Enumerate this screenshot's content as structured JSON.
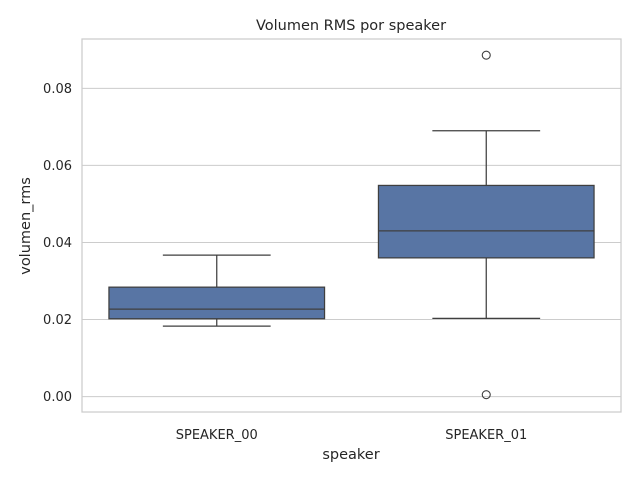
{
  "chart_data": {
    "type": "box",
    "title": "Volumen RMS por speaker",
    "xlabel": "speaker",
    "ylabel": "volumen_rms",
    "ylim": [
      -0.004,
      0.0928
    ],
    "yticks": [
      0.0,
      0.02,
      0.04,
      0.06,
      0.08
    ],
    "ytick_labels": [
      "0.00",
      "0.02",
      "0.04",
      "0.06",
      "0.08"
    ],
    "grid": "horizontal",
    "color": "#5875a4",
    "categories": [
      "SPEAKER_00",
      "SPEAKER_01"
    ],
    "boxes": [
      {
        "category": "SPEAKER_00",
        "whisker_low": 0.0183,
        "q1": 0.0202,
        "median": 0.0227,
        "q3": 0.0284,
        "whisker_high": 0.0367,
        "outliers": []
      },
      {
        "category": "SPEAKER_01",
        "whisker_low": 0.0203,
        "q1": 0.036,
        "median": 0.043,
        "q3": 0.0548,
        "whisker_high": 0.069,
        "outliers": [
          0.0886,
          0.0005
        ]
      }
    ]
  }
}
